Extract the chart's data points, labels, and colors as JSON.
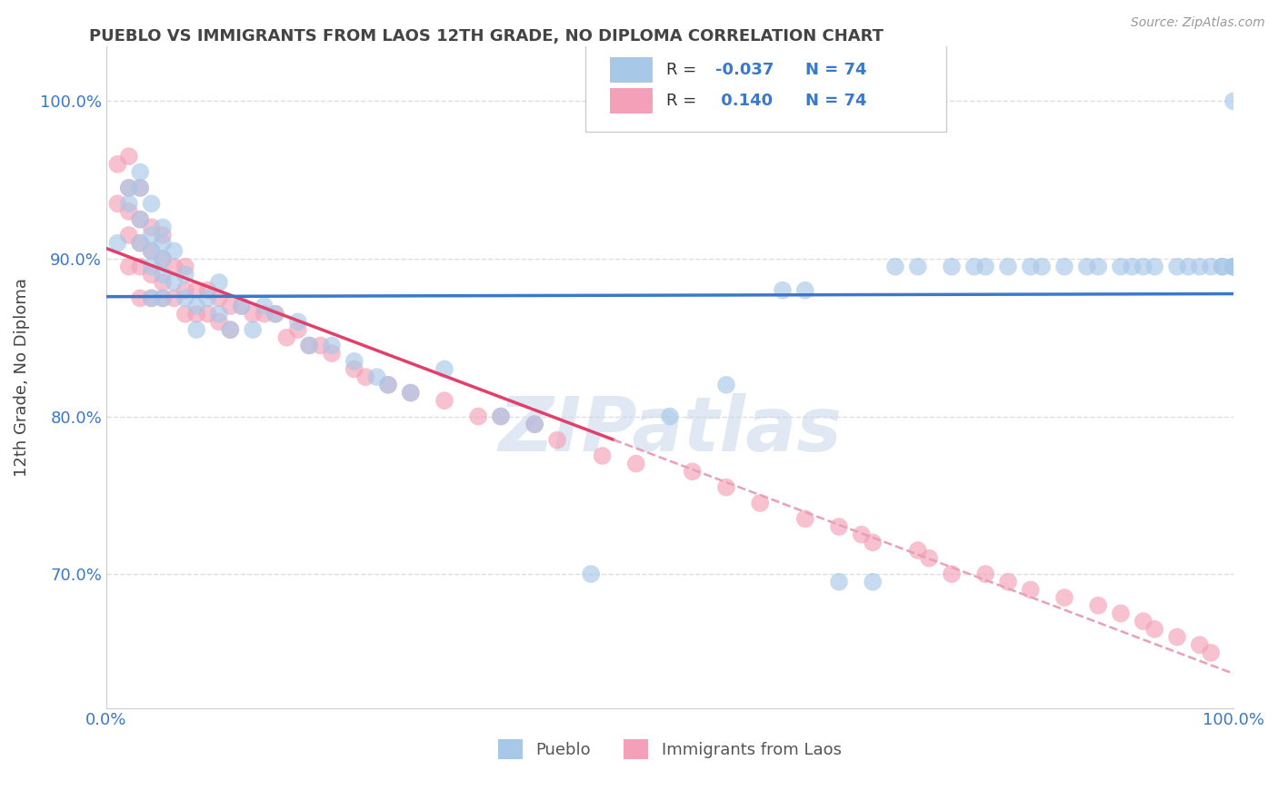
{
  "title": "PUEBLO VS IMMIGRANTS FROM LAOS 12TH GRADE, NO DIPLOMA CORRELATION CHART",
  "source_text": "Source: ZipAtlas.com",
  "ylabel": "12th Grade, No Diploma",
  "xlim": [
    0.0,
    1.0
  ],
  "ylim": [
    0.615,
    1.035
  ],
  "ytick_positions": [
    0.7,
    0.8,
    0.9,
    1.0
  ],
  "ytick_labels": [
    "70.0%",
    "80.0%",
    "90.0%",
    "100.0%"
  ],
  "xtick_positions": [
    0.0,
    0.5,
    1.0
  ],
  "xtick_labels": [
    "0.0%",
    "",
    "100.0%"
  ],
  "pueblo_color": "#a8c8e8",
  "laos_color": "#f4a0b8",
  "pueblo_line_color": "#3a78c9",
  "laos_line_color": "#e0406a",
  "dash_line_color": "#e8a0b8",
  "r_value_color": "#3a78c9",
  "tick_color": "#3a78c9",
  "watermark_color": "#ccdaec",
  "r_pueblo": "-0.037",
  "n_pueblo": "74",
  "r_laos": "0.140",
  "n_laos": "74",
  "watermark": "ZIPatlas",
  "pueblo_x": [
    0.01,
    0.02,
    0.02,
    0.03,
    0.03,
    0.03,
    0.03,
    0.04,
    0.04,
    0.04,
    0.04,
    0.04,
    0.05,
    0.05,
    0.05,
    0.05,
    0.05,
    0.06,
    0.06,
    0.07,
    0.07,
    0.08,
    0.08,
    0.09,
    0.1,
    0.1,
    0.11,
    0.12,
    0.13,
    0.14,
    0.15,
    0.17,
    0.18,
    0.2,
    0.22,
    0.24,
    0.25,
    0.27,
    0.3,
    0.35,
    0.38,
    0.43,
    0.5,
    0.55,
    0.6,
    0.62,
    0.65,
    0.68,
    0.7,
    0.72,
    0.75,
    0.77,
    0.78,
    0.8,
    0.82,
    0.83,
    0.85,
    0.87,
    0.88,
    0.9,
    0.91,
    0.92,
    0.93,
    0.95,
    0.96,
    0.97,
    0.98,
    0.99,
    0.99,
    1.0,
    1.0,
    1.0,
    1.0,
    1.0
  ],
  "pueblo_y": [
    0.91,
    0.935,
    0.945,
    0.955,
    0.945,
    0.925,
    0.91,
    0.935,
    0.915,
    0.905,
    0.895,
    0.875,
    0.92,
    0.91,
    0.9,
    0.89,
    0.875,
    0.905,
    0.885,
    0.89,
    0.875,
    0.87,
    0.855,
    0.875,
    0.885,
    0.865,
    0.855,
    0.87,
    0.855,
    0.87,
    0.865,
    0.86,
    0.845,
    0.845,
    0.835,
    0.825,
    0.82,
    0.815,
    0.83,
    0.8,
    0.795,
    0.7,
    0.8,
    0.82,
    0.88,
    0.88,
    0.695,
    0.695,
    0.895,
    0.895,
    0.895,
    0.895,
    0.895,
    0.895,
    0.895,
    0.895,
    0.895,
    0.895,
    0.895,
    0.895,
    0.895,
    0.895,
    0.895,
    0.895,
    0.895,
    0.895,
    0.895,
    0.895,
    0.895,
    0.895,
    0.895,
    0.895,
    0.895,
    1.0
  ],
  "laos_x": [
    0.01,
    0.01,
    0.02,
    0.02,
    0.02,
    0.02,
    0.02,
    0.03,
    0.03,
    0.03,
    0.03,
    0.03,
    0.04,
    0.04,
    0.04,
    0.04,
    0.05,
    0.05,
    0.05,
    0.05,
    0.06,
    0.06,
    0.07,
    0.07,
    0.07,
    0.08,
    0.08,
    0.09,
    0.09,
    0.1,
    0.1,
    0.11,
    0.11,
    0.12,
    0.13,
    0.14,
    0.15,
    0.16,
    0.17,
    0.18,
    0.19,
    0.2,
    0.22,
    0.23,
    0.25,
    0.27,
    0.3,
    0.33,
    0.35,
    0.38,
    0.4,
    0.44,
    0.47,
    0.52,
    0.55,
    0.58,
    0.62,
    0.65,
    0.67,
    0.68,
    0.72,
    0.73,
    0.75,
    0.78,
    0.8,
    0.82,
    0.85,
    0.88,
    0.9,
    0.92,
    0.93,
    0.95,
    0.97,
    0.98
  ],
  "laos_y": [
    0.96,
    0.935,
    0.965,
    0.945,
    0.93,
    0.915,
    0.895,
    0.945,
    0.925,
    0.91,
    0.895,
    0.875,
    0.92,
    0.905,
    0.89,
    0.875,
    0.915,
    0.9,
    0.885,
    0.875,
    0.895,
    0.875,
    0.895,
    0.88,
    0.865,
    0.88,
    0.865,
    0.88,
    0.865,
    0.875,
    0.86,
    0.87,
    0.855,
    0.87,
    0.865,
    0.865,
    0.865,
    0.85,
    0.855,
    0.845,
    0.845,
    0.84,
    0.83,
    0.825,
    0.82,
    0.815,
    0.81,
    0.8,
    0.8,
    0.795,
    0.785,
    0.775,
    0.77,
    0.765,
    0.755,
    0.745,
    0.735,
    0.73,
    0.725,
    0.72,
    0.715,
    0.71,
    0.7,
    0.7,
    0.695,
    0.69,
    0.685,
    0.68,
    0.675,
    0.67,
    0.665,
    0.66,
    0.655,
    0.65
  ]
}
